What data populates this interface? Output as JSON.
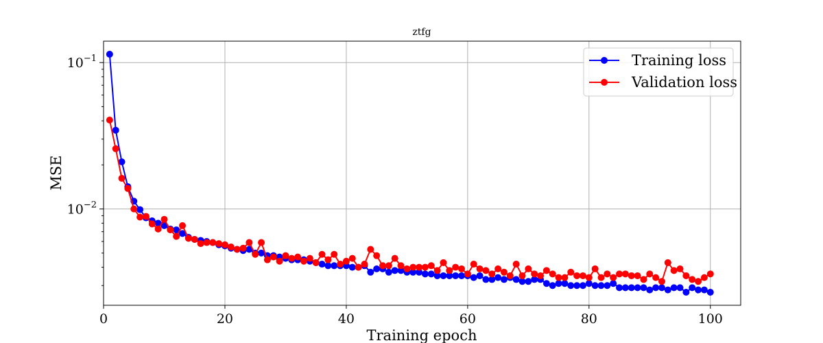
{
  "chart_data": {
    "type": "line",
    "title": "ztfg",
    "xlabel": "Training epoch",
    "ylabel": "MSE",
    "x_scale": "linear",
    "y_scale": "log",
    "xlim": [
      0,
      105
    ],
    "ylim": [
      0.0022,
      0.14
    ],
    "grid": true,
    "legend_position": "top-right",
    "x_ticks": [
      0,
      20,
      40,
      60,
      80,
      100
    ],
    "x_tick_labels": [
      "0",
      "20",
      "40",
      "60",
      "80",
      "100"
    ],
    "y_major_ticks": [
      0.01,
      0.1
    ],
    "y_tick_labels": [
      {
        "base": "10",
        "exp": "−2"
      },
      {
        "base": "10",
        "exp": "−1"
      }
    ],
    "x": [
      1,
      2,
      3,
      4,
      5,
      6,
      7,
      8,
      9,
      10,
      11,
      12,
      13,
      14,
      15,
      16,
      17,
      18,
      19,
      20,
      21,
      22,
      23,
      24,
      25,
      26,
      27,
      28,
      29,
      30,
      31,
      32,
      33,
      34,
      35,
      36,
      37,
      38,
      39,
      40,
      41,
      42,
      43,
      44,
      45,
      46,
      47,
      48,
      49,
      50,
      51,
      52,
      53,
      54,
      55,
      56,
      57,
      58,
      59,
      60,
      61,
      62,
      63,
      64,
      65,
      66,
      67,
      68,
      69,
      70,
      71,
      72,
      73,
      74,
      75,
      76,
      77,
      78,
      79,
      80,
      81,
      82,
      83,
      84,
      85,
      86,
      87,
      88,
      89,
      90,
      91,
      92,
      93,
      94,
      95,
      96,
      97,
      98,
      99,
      100
    ],
    "series": [
      {
        "name": "Training loss",
        "color": "#0000ff",
        "values": [
          0.114,
          0.0345,
          0.021,
          0.0142,
          0.0113,
          0.0099,
          0.0087,
          0.0083,
          0.008,
          0.0077,
          0.0073,
          0.0072,
          0.0068,
          0.0064,
          0.0062,
          0.0061,
          0.006,
          0.0059,
          0.0057,
          0.0056,
          0.0054,
          0.0053,
          0.0052,
          0.0053,
          0.005,
          0.005,
          0.0048,
          0.0048,
          0.0047,
          0.0046,
          0.0045,
          0.0045,
          0.0045,
          0.0044,
          0.0043,
          0.0042,
          0.0041,
          0.0041,
          0.0041,
          0.0041,
          0.004,
          0.004,
          0.0041,
          0.0037,
          0.0039,
          0.0039,
          0.0037,
          0.0038,
          0.0038,
          0.0037,
          0.0037,
          0.0037,
          0.0036,
          0.0036,
          0.0035,
          0.0035,
          0.0035,
          0.0035,
          0.0035,
          0.0035,
          0.0034,
          0.0035,
          0.0033,
          0.0033,
          0.0034,
          0.0033,
          0.0034,
          0.0033,
          0.0032,
          0.0032,
          0.0033,
          0.0033,
          0.0031,
          0.003,
          0.0031,
          0.0031,
          0.003,
          0.003,
          0.003,
          0.0031,
          0.003,
          0.003,
          0.003,
          0.0031,
          0.0029,
          0.0029,
          0.0029,
          0.0029,
          0.0029,
          0.0028,
          0.0029,
          0.0029,
          0.0028,
          0.0029,
          0.0029,
          0.0027,
          0.0029,
          0.0028,
          0.0028,
          0.0027
        ]
      },
      {
        "name": "Validation loss",
        "color": "#ff0000",
        "values": [
          0.0405,
          0.0258,
          0.0162,
          0.0138,
          0.01,
          0.0088,
          0.0089,
          0.0079,
          0.0073,
          0.0085,
          0.0072,
          0.0065,
          0.0077,
          0.0063,
          0.0062,
          0.0058,
          0.0059,
          0.0059,
          0.0058,
          0.0057,
          0.0055,
          0.0053,
          0.0054,
          0.0059,
          0.0049,
          0.0059,
          0.0045,
          0.0047,
          0.0044,
          0.0048,
          0.0046,
          0.0047,
          0.0044,
          0.0046,
          0.0043,
          0.0049,
          0.0045,
          0.0049,
          0.0042,
          0.0044,
          0.0046,
          0.004,
          0.0042,
          0.0053,
          0.0048,
          0.0041,
          0.0041,
          0.0046,
          0.0041,
          0.0039,
          0.004,
          0.004,
          0.004,
          0.0041,
          0.0038,
          0.0043,
          0.0038,
          0.004,
          0.0039,
          0.0036,
          0.0042,
          0.0039,
          0.0038,
          0.0036,
          0.0039,
          0.0037,
          0.0035,
          0.0042,
          0.0035,
          0.0039,
          0.0036,
          0.0035,
          0.0038,
          0.0036,
          0.0034,
          0.0034,
          0.0037,
          0.0035,
          0.0035,
          0.0034,
          0.0039,
          0.0034,
          0.0036,
          0.0034,
          0.0036,
          0.0036,
          0.0035,
          0.0035,
          0.0033,
          0.0036,
          0.0034,
          0.0032,
          0.0043,
          0.0038,
          0.0039,
          0.0035,
          0.0033,
          0.0032,
          0.0034,
          0.0036
        ]
      }
    ]
  }
}
